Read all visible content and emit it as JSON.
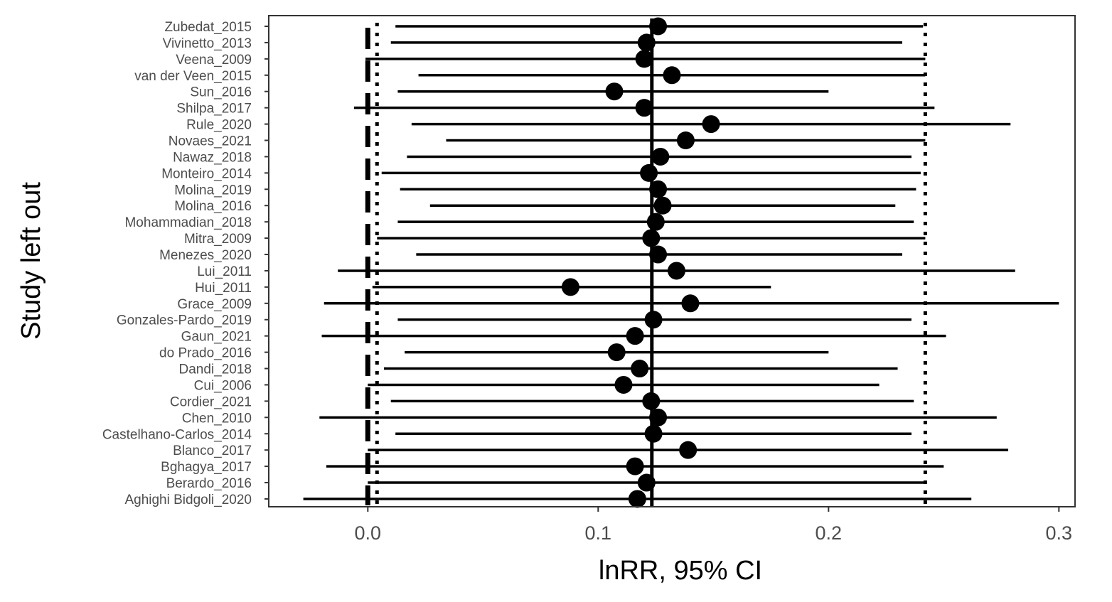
{
  "chart_data": {
    "type": "forest",
    "xlabel": "lnRR, 95% CI",
    "ylabel": "Study left out",
    "xlim": [
      -0.043,
      0.307
    ],
    "xticks": [
      0.0,
      0.1,
      0.2,
      0.3
    ],
    "xtick_labels": [
      "0.0",
      "0.1",
      "0.2",
      "0.3"
    ],
    "reference_lines": {
      "zero": 0.0,
      "pooled_estimate": 0.1233,
      "pooled_ci_lower": 0.004,
      "pooled_ci_upper": 0.242
    },
    "grid": false,
    "studies": [
      {
        "study": "Zubedat_2015",
        "estimate": 0.126,
        "ci_lower": 0.012,
        "ci_upper": 0.241
      },
      {
        "study": "Vivinetto_2013",
        "estimate": 0.121,
        "ci_lower": 0.01,
        "ci_upper": 0.232
      },
      {
        "study": "Veena_2009",
        "estimate": 0.12,
        "ci_lower": -0.001,
        "ci_upper": 0.242
      },
      {
        "study": "van der Veen_2015",
        "estimate": 0.132,
        "ci_lower": 0.022,
        "ci_upper": 0.242
      },
      {
        "study": "Sun_2016",
        "estimate": 0.107,
        "ci_lower": 0.013,
        "ci_upper": 0.2
      },
      {
        "study": "Shilpa_2017",
        "estimate": 0.12,
        "ci_lower": -0.006,
        "ci_upper": 0.246
      },
      {
        "study": "Rule_2020",
        "estimate": 0.149,
        "ci_lower": 0.019,
        "ci_upper": 0.279
      },
      {
        "study": "Novaes_2021",
        "estimate": 0.138,
        "ci_lower": 0.034,
        "ci_upper": 0.242
      },
      {
        "study": "Nawaz_2018",
        "estimate": 0.127,
        "ci_lower": 0.017,
        "ci_upper": 0.236
      },
      {
        "study": "Monteiro_2014",
        "estimate": 0.122,
        "ci_lower": 0.006,
        "ci_upper": 0.24
      },
      {
        "study": "Molina_2019",
        "estimate": 0.126,
        "ci_lower": 0.014,
        "ci_upper": 0.238
      },
      {
        "study": "Molina_2016",
        "estimate": 0.128,
        "ci_lower": 0.027,
        "ci_upper": 0.229
      },
      {
        "study": "Mohammadian_2018",
        "estimate": 0.125,
        "ci_lower": 0.013,
        "ci_upper": 0.237
      },
      {
        "study": "Mitra_2009",
        "estimate": 0.123,
        "ci_lower": 0.004,
        "ci_upper": 0.242
      },
      {
        "study": "Menezes_2020",
        "estimate": 0.126,
        "ci_lower": 0.021,
        "ci_upper": 0.232
      },
      {
        "study": "Lui_2011",
        "estimate": 0.134,
        "ci_lower": -0.013,
        "ci_upper": 0.281
      },
      {
        "study": "Hui_2011",
        "estimate": 0.088,
        "ci_lower": 0.002,
        "ci_upper": 0.175
      },
      {
        "study": "Grace_2009",
        "estimate": 0.14,
        "ci_lower": -0.019,
        "ci_upper": 0.3
      },
      {
        "study": "Gonzales-Pardo_2019",
        "estimate": 0.124,
        "ci_lower": 0.013,
        "ci_upper": 0.236
      },
      {
        "study": "Gaun_2021",
        "estimate": 0.116,
        "ci_lower": -0.02,
        "ci_upper": 0.251
      },
      {
        "study": "do Prado_2016",
        "estimate": 0.108,
        "ci_lower": 0.016,
        "ci_upper": 0.2
      },
      {
        "study": "Dandi_2018",
        "estimate": 0.118,
        "ci_lower": 0.007,
        "ci_upper": 0.23
      },
      {
        "study": "Cui_2006",
        "estimate": 0.111,
        "ci_lower": 0.0,
        "ci_upper": 0.222
      },
      {
        "study": "Cordier_2021",
        "estimate": 0.123,
        "ci_lower": 0.01,
        "ci_upper": 0.237
      },
      {
        "study": "Chen_2010",
        "estimate": 0.126,
        "ci_lower": -0.021,
        "ci_upper": 0.273
      },
      {
        "study": "Castelhano-Carlos_2014",
        "estimate": 0.124,
        "ci_lower": 0.012,
        "ci_upper": 0.236
      },
      {
        "study": "Blanco_2017",
        "estimate": 0.139,
        "ci_lower": 0.0,
        "ci_upper": 0.278
      },
      {
        "study": "Bghagya_2017",
        "estimate": 0.116,
        "ci_lower": -0.018,
        "ci_upper": 0.25
      },
      {
        "study": "Berardo_2016",
        "estimate": 0.121,
        "ci_lower": 0.0,
        "ci_upper": 0.242
      },
      {
        "study": "Aghighi Bidgoli_2020",
        "estimate": 0.117,
        "ci_lower": -0.028,
        "ci_upper": 0.262
      }
    ]
  }
}
